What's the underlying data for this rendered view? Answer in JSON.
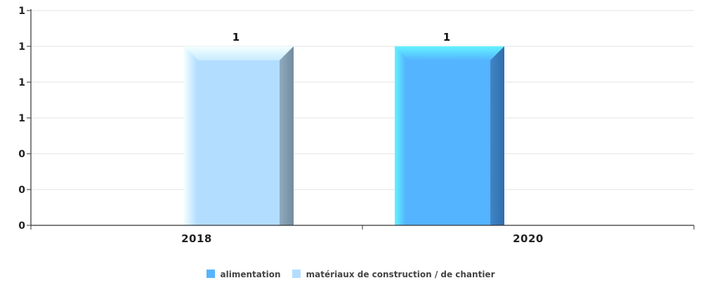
{
  "chart_data": {
    "type": "bar",
    "categories": [
      "2018",
      "2020"
    ],
    "y_tick_labels": [
      "0",
      "0",
      "0",
      "1",
      "1",
      "1",
      "1"
    ],
    "ylim": [
      0,
      1.2
    ],
    "grid": true,
    "legend_position": "bottom-center",
    "series": [
      {
        "name": "alimentation",
        "color": "#55b4ff",
        "values": [
          null,
          1
        ],
        "data_labels": [
          "",
          "1"
        ]
      },
      {
        "name": "matériaux de construction / de chantier",
        "color": "#b3ddff",
        "values": [
          1,
          null
        ],
        "data_labels": [
          "1",
          ""
        ]
      }
    ]
  }
}
